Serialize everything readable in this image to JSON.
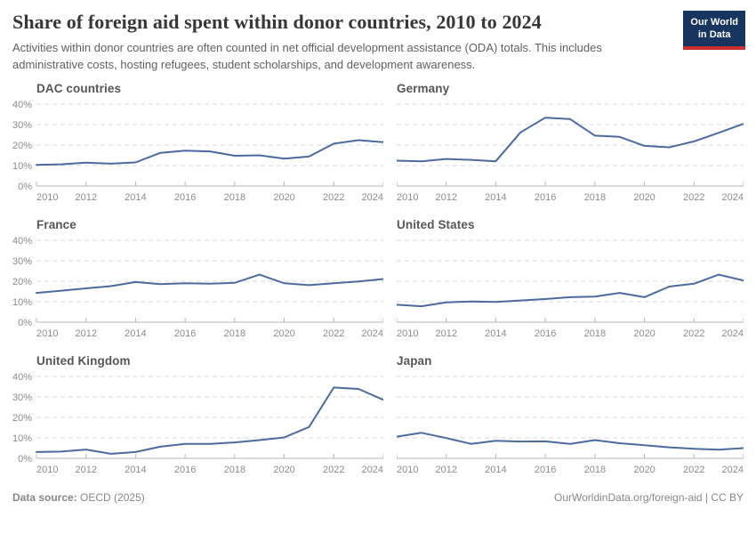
{
  "header": {
    "title": "Share of foreign aid spent within donor countries, 2010 to 2024",
    "subtitle": "Activities within donor countries are often counted in net official development assistance (ODA) totals. This includes administrative costs, hosting refugees, student scholarships, and development awareness.",
    "logo": {
      "line1": "Our World",
      "line2": "in Data"
    }
  },
  "footer": {
    "source_label": "Data source:",
    "source_value": "OECD (2025)",
    "citation": "OurWorldinData.org/foreign-aid | CC BY"
  },
  "colors": {
    "line": "#4C6A9C",
    "gridline": "#d9d9d9",
    "axis": "#b5b5b5",
    "tick_text": "#8b8b8b",
    "logo_bg": "#18355f",
    "logo_accent": "#c9302f"
  },
  "chart_data": {
    "type": "line",
    "title": "Share of foreign aid spent within donor countries, 2010 to 2024",
    "x": [
      2010,
      2011,
      2012,
      2013,
      2014,
      2015,
      2016,
      2017,
      2018,
      2019,
      2020,
      2021,
      2022,
      2023,
      2024
    ],
    "x_ticks": [
      2010,
      2012,
      2014,
      2016,
      2018,
      2020,
      2022,
      2024
    ],
    "ylim": [
      0,
      40
    ],
    "y_ticks": [
      0,
      10,
      20,
      30,
      40
    ],
    "y_tick_labels": [
      "0%",
      "10%",
      "20%",
      "30%",
      "40%"
    ],
    "unit": "%",
    "grid": "dashed-horizontal",
    "legend_position": "none",
    "panels": [
      {
        "title": "DAC countries",
        "values": [
          10.3,
          10.6,
          11.4,
          10.9,
          11.5,
          16.2,
          17.3,
          16.9,
          14.8,
          15.0,
          13.4,
          14.4,
          20.7,
          22.4,
          21.4
        ]
      },
      {
        "title": "Germany",
        "values": [
          12.4,
          12.1,
          13.2,
          12.8,
          12.1,
          26.2,
          33.4,
          32.7,
          24.6,
          24.0,
          19.6,
          18.9,
          21.8,
          26.0,
          30.4
        ]
      },
      {
        "title": "France",
        "values": [
          14.3,
          15.4,
          16.5,
          17.6,
          19.6,
          18.6,
          19.0,
          18.8,
          19.2,
          23.2,
          19.0,
          18.1,
          19.0,
          19.9,
          21.1
        ]
      },
      {
        "title": "United States",
        "values": [
          8.5,
          7.8,
          9.7,
          10.1,
          9.9,
          10.6,
          11.3,
          12.2,
          12.5,
          14.3,
          12.2,
          17.4,
          18.8,
          23.2,
          20.4
        ]
      },
      {
        "title": "United Kingdom",
        "values": [
          3.1,
          3.3,
          4.3,
          2.2,
          3.1,
          5.7,
          7.1,
          7.1,
          7.8,
          8.9,
          10.2,
          15.3,
          34.6,
          33.9,
          28.6
        ]
      },
      {
        "title": "Japan",
        "values": [
          10.6,
          12.5,
          9.9,
          7.1,
          8.6,
          8.2,
          8.3,
          7.1,
          8.9,
          7.4,
          6.4,
          5.4,
          4.7,
          4.2,
          5.0
        ]
      }
    ]
  }
}
